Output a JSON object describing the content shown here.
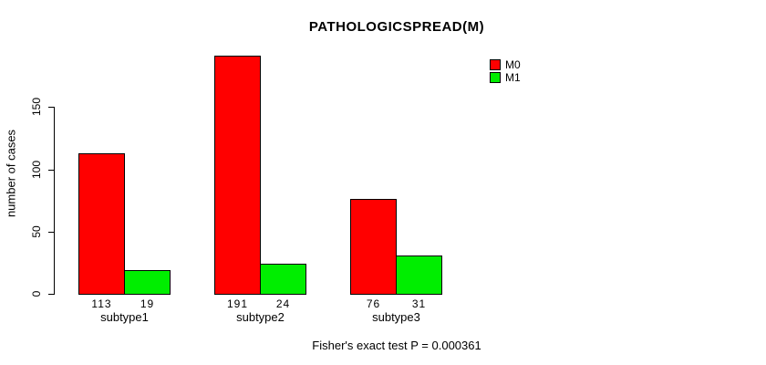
{
  "chart_data": {
    "type": "bar",
    "title": "PATHOLOGICSPREAD(M)",
    "ylabel": "number of cases",
    "xlabel": "",
    "categories": [
      "subtype1",
      "subtype2",
      "subtype3"
    ],
    "series": [
      {
        "name": "M0",
        "color": "#ff0000",
        "values": [
          113,
          191,
          76
        ]
      },
      {
        "name": "M1",
        "color": "#00ee00",
        "values": [
          19,
          24,
          31
        ]
      }
    ],
    "yticks": [
      0,
      50,
      100,
      150
    ],
    "ylim": [
      0,
      195
    ],
    "grid": false,
    "legend_position": "top-right",
    "bar_value_labels": true,
    "note": "Fisher's exact test P = 0.000361"
  },
  "colors": {
    "background": "#ffffff",
    "axis": "#000000",
    "text": "#000000"
  }
}
